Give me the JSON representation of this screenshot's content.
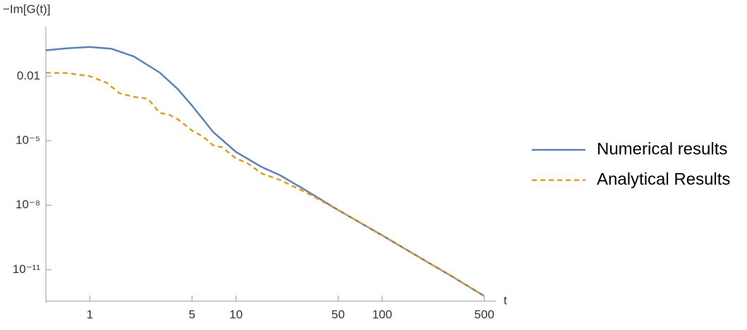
{
  "chart_data": {
    "type": "line",
    "ylabel": "−Im[G(t)]",
    "xlabel": "t",
    "log_x": true,
    "log_y": true,
    "xlim": [
      0.5,
      600
    ],
    "ylim": [
      3e-13,
      2
    ],
    "xticks": [
      1,
      5,
      10,
      50,
      100,
      500
    ],
    "yticks": [
      0.01,
      {
        "value": 1e-05,
        "label": "10⁻⁵"
      },
      {
        "value": 1e-08,
        "label": "10⁻⁸"
      },
      {
        "value": 1e-11,
        "label": "10⁻¹¹"
      }
    ],
    "legend": "right",
    "series": [
      {
        "name": "Numerical results",
        "color": "#5e81b5",
        "dash": false,
        "x": [
          0.5,
          0.7,
          1,
          1.4,
          2,
          3,
          4,
          5,
          7,
          10,
          15,
          20,
          30,
          50,
          100,
          200,
          300,
          500
        ],
        "values": [
          0.16,
          0.2,
          0.23,
          0.19,
          0.083,
          0.015,
          0.0025,
          0.00043,
          2.5e-05,
          3e-06,
          6e-07,
          2.5e-07,
          5e-08,
          6e-09,
          4e-10,
          2.5e-11,
          5e-12,
          6e-13
        ]
      },
      {
        "name": "Analytical Results",
        "color": "#e19c24",
        "dash": true,
        "x": [
          0.5,
          0.7,
          1,
          1.3,
          1.6,
          2,
          2.5,
          3,
          3.5,
          4,
          5,
          6,
          7,
          8,
          10,
          12,
          15,
          20,
          30,
          50,
          100,
          200,
          300,
          500
        ],
        "values": [
          0.0145,
          0.014,
          0.01,
          0.005,
          0.0016,
          0.0011,
          0.0009,
          0.0002,
          0.00016,
          0.0001,
          3e-05,
          1.5e-05,
          6e-06,
          5e-06,
          1.5e-06,
          9e-07,
          3e-07,
          1.5e-07,
          4e-08,
          6e-09,
          4e-10,
          2.5e-11,
          5e-12,
          6e-13
        ]
      }
    ]
  }
}
